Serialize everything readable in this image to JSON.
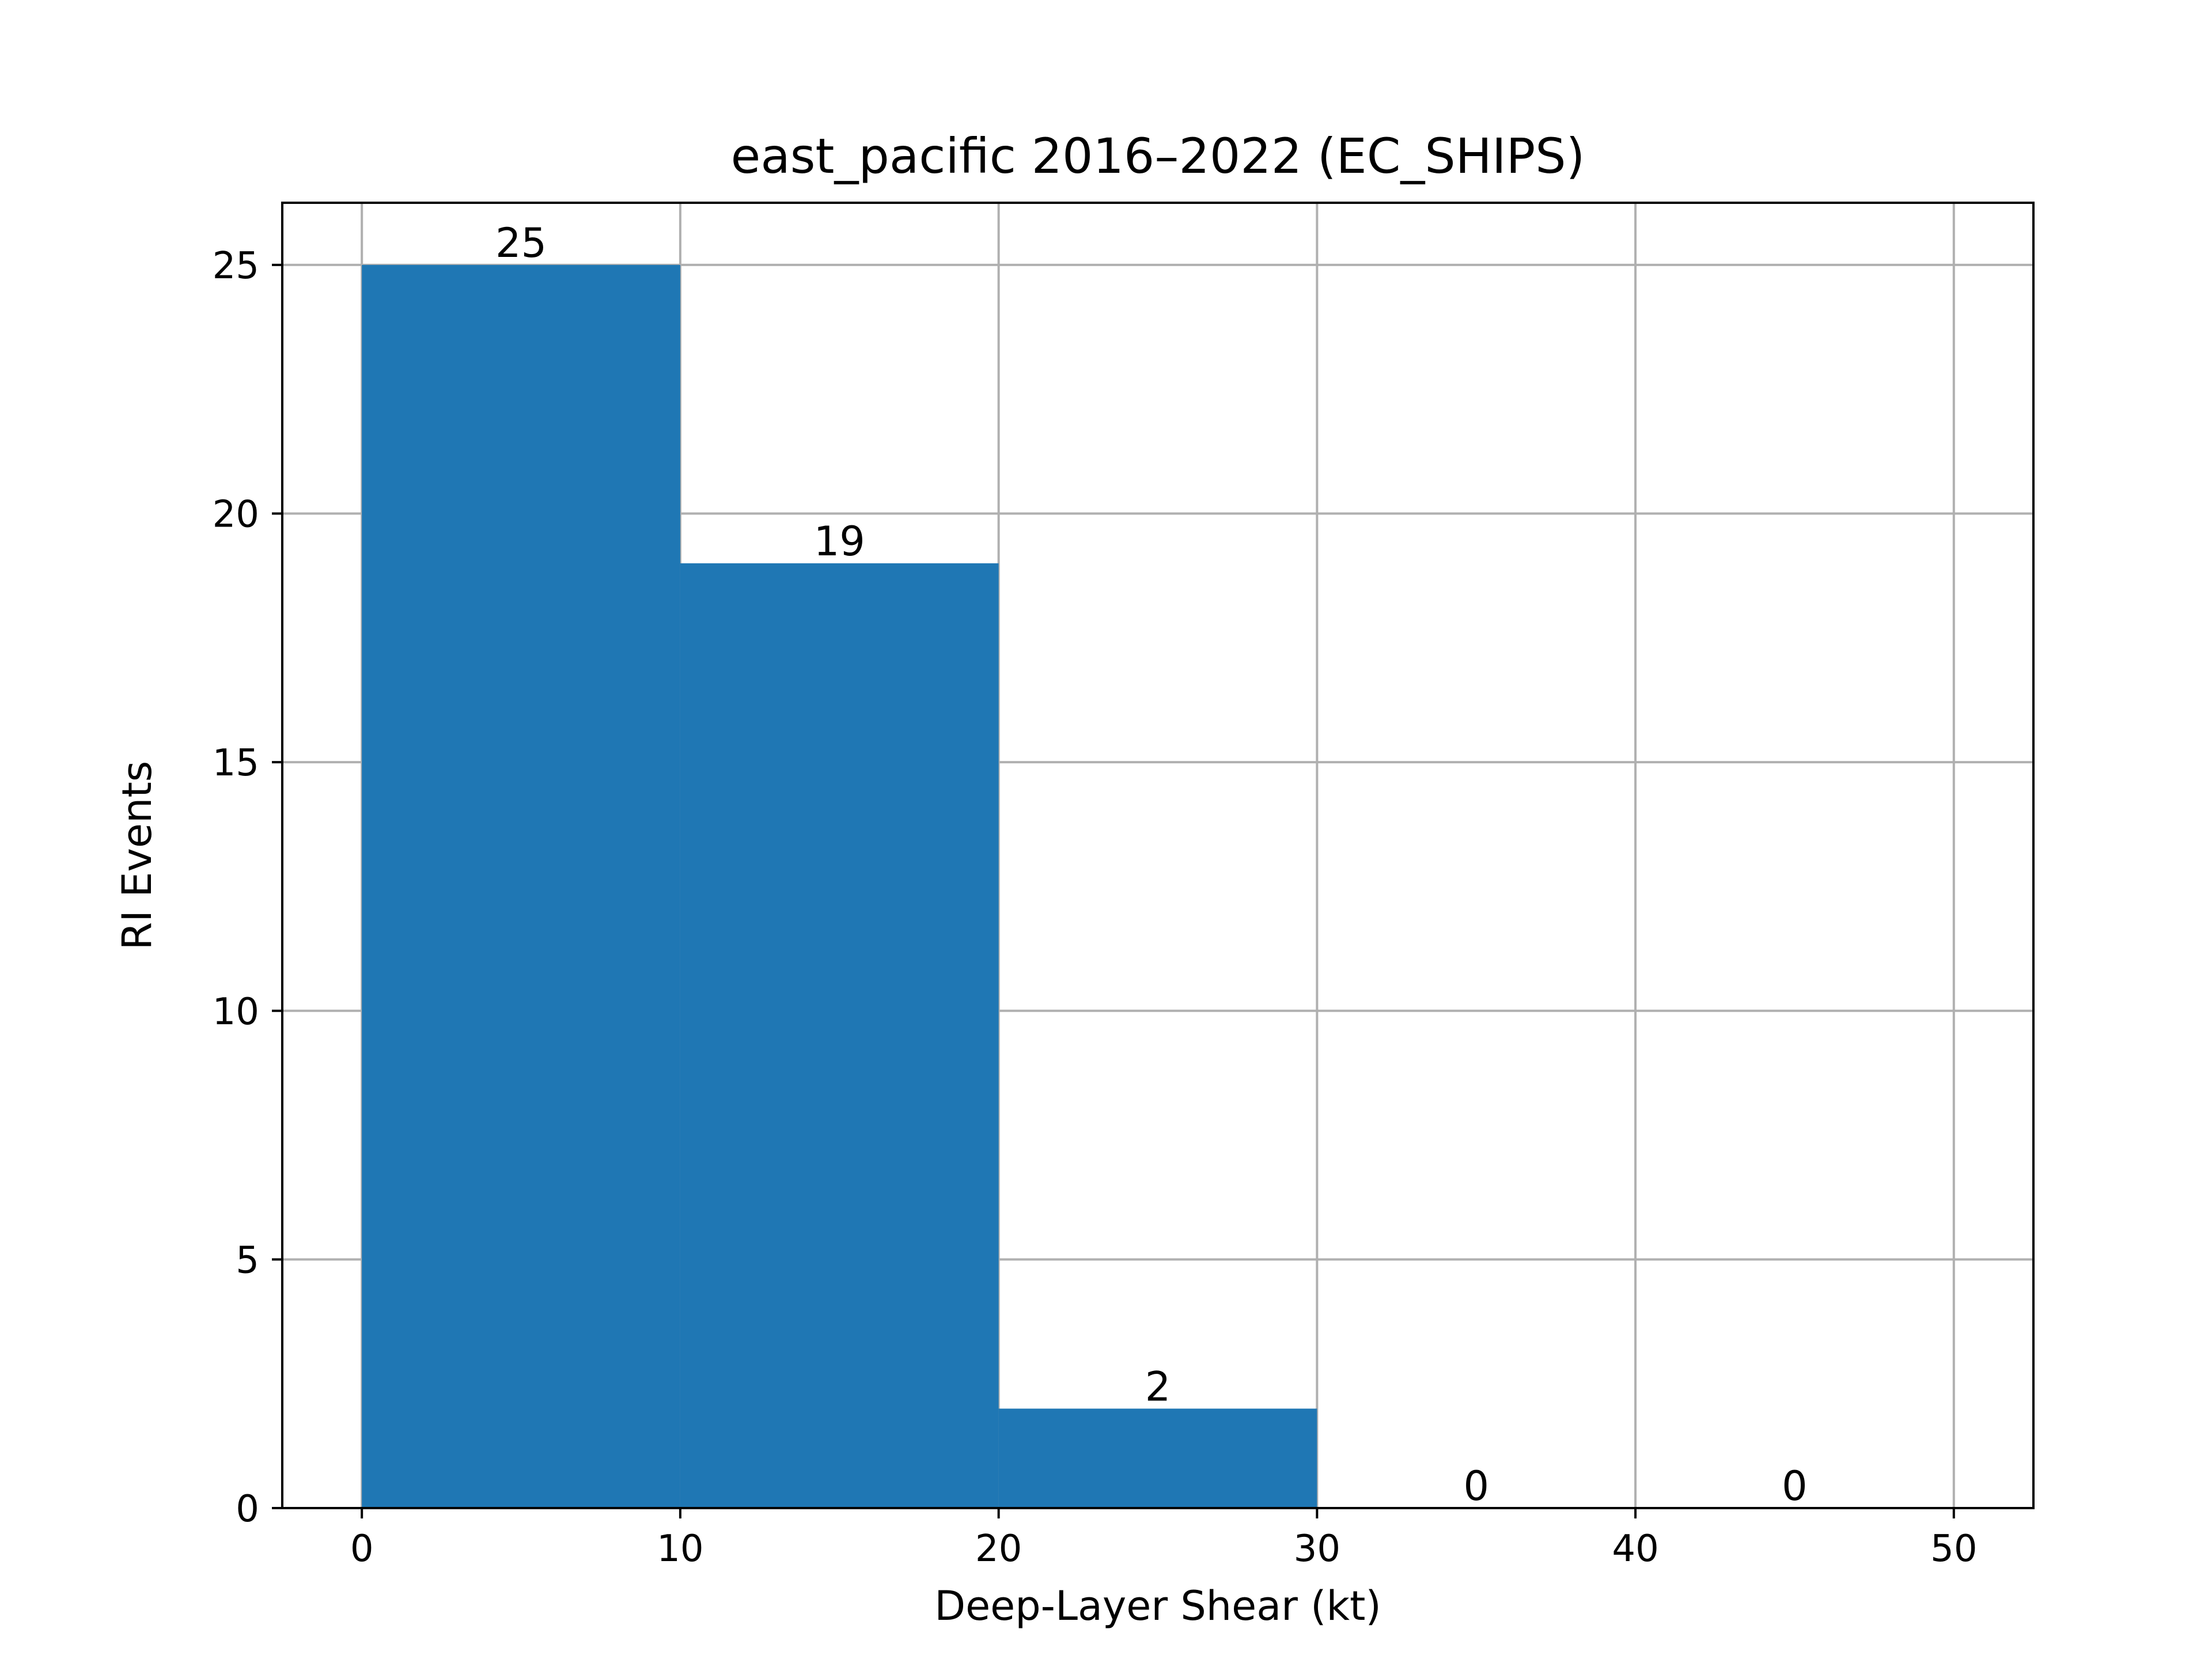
{
  "chart_data": {
    "type": "bar",
    "title": "east_pacific 2016–2022 (EC_SHIPS)",
    "xlabel": "Deep-Layer Shear (kt)",
    "ylabel": "RI Events",
    "bins": [
      {
        "start": 0,
        "end": 10,
        "value": 25,
        "label": "25"
      },
      {
        "start": 10,
        "end": 20,
        "value": 19,
        "label": "19"
      },
      {
        "start": 20,
        "end": 30,
        "value": 2,
        "label": "2"
      },
      {
        "start": 30,
        "end": 40,
        "value": 0,
        "label": "0"
      },
      {
        "start": 40,
        "end": 50,
        "value": 0,
        "label": "0"
      }
    ],
    "xlim": [
      -2.5,
      52.5
    ],
    "ylim": [
      0,
      26.25
    ],
    "xticks": [
      0,
      10,
      20,
      30,
      40,
      50
    ],
    "xtick_labels": [
      "0",
      "10",
      "20",
      "30",
      "40",
      "50"
    ],
    "yticks": [
      0,
      5,
      10,
      15,
      20,
      25
    ],
    "ytick_labels": [
      "0",
      "5",
      "10",
      "15",
      "20",
      "25"
    ],
    "grid": true,
    "legend": "none",
    "colors": {
      "bar": "#1f77b4",
      "grid": "#b0b0b0",
      "axes": "#000000",
      "background": "#ffffff"
    }
  }
}
